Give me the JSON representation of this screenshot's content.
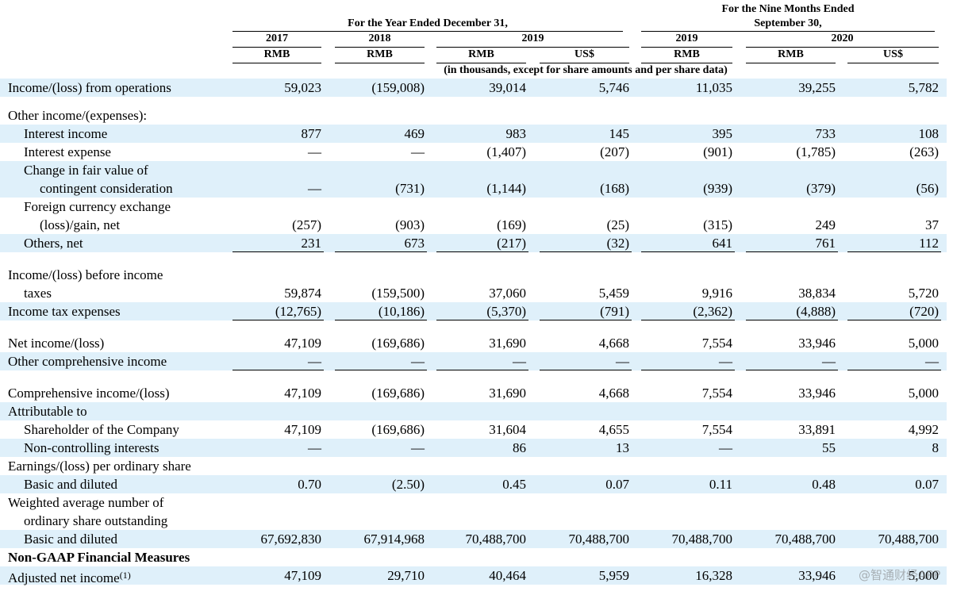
{
  "header": {
    "nine_months_group": [
      "For the Nine Months Ended",
      "September 30,"
    ],
    "year_group": "For the Year Ended December 31,",
    "years": [
      "2017",
      "2018",
      "2019",
      "2019",
      "2020"
    ],
    "currencies": [
      "RMB",
      "RMB",
      "RMB",
      "US$",
      "RMB",
      "RMB",
      "US$"
    ],
    "note": "(in thousands, except for share amounts and per share data)"
  },
  "sections": [
    {
      "rows": [
        {
          "label": [
            "Income/(loss) from operations"
          ],
          "level": 0,
          "shaded": true,
          "values": [
            "59,023",
            "(159,008)",
            "39,014",
            "5,746",
            "11,035",
            "39,255",
            "5,782"
          ]
        }
      ]
    },
    {
      "rows": [
        {
          "label": [
            "Other income/(expenses):"
          ],
          "level": 0,
          "shaded": false
        },
        {
          "label": [
            "Interest income"
          ],
          "level": 1,
          "shaded": true,
          "values": [
            "877",
            "469",
            "983",
            "145",
            "395",
            "733",
            "108"
          ]
        },
        {
          "label": [
            "Interest expense"
          ],
          "level": 1,
          "shaded": false,
          "values": [
            "—",
            "—",
            "(1,407)",
            "(207)",
            "(901)",
            "(1,785)",
            "(263)"
          ]
        },
        {
          "label": [
            "Change in fair value of",
            "contingent consideration"
          ],
          "level": 1,
          "shaded": true,
          "values": [
            "—",
            "(731)",
            "(1,144)",
            "(168)",
            "(939)",
            "(379)",
            "(56)"
          ]
        },
        {
          "label": [
            "Foreign currency exchange",
            "(loss)/gain, net"
          ],
          "level": 1,
          "shaded": false,
          "values": [
            "(257)",
            "(903)",
            "(169)",
            "(25)",
            "(315)",
            "249",
            "37"
          ]
        },
        {
          "label": [
            "Others, net"
          ],
          "level": 1,
          "shaded": true,
          "underline": true,
          "values": [
            "231",
            "673",
            "(217)",
            "(32)",
            "641",
            "761",
            "112"
          ]
        }
      ]
    },
    {
      "rows": [
        {
          "label": [
            "Income/(loss) before income",
            "taxes"
          ],
          "level": 0,
          "shaded": false,
          "values": [
            "59,874",
            "(159,500)",
            "37,060",
            "5,459",
            "9,916",
            "38,834",
            "5,720"
          ]
        },
        {
          "label": [
            "Income tax expenses"
          ],
          "level": 0,
          "shaded": true,
          "underline": true,
          "values": [
            "(12,765)",
            "(10,186)",
            "(5,370)",
            "(791)",
            "(2,362)",
            "(4,888)",
            "(720)"
          ]
        }
      ]
    },
    {
      "rows": [
        {
          "label": [
            "Net income/(loss)"
          ],
          "level": 0,
          "shaded": false,
          "values": [
            "47,109",
            "(169,686)",
            "31,690",
            "4,668",
            "7,554",
            "33,946",
            "5,000"
          ]
        },
        {
          "label": [
            "Other comprehensive income"
          ],
          "level": 0,
          "shaded": true,
          "underline": true,
          "values": [
            "—",
            "—",
            "—",
            "—",
            "—",
            "—",
            "—"
          ]
        }
      ]
    },
    {
      "rows": [
        {
          "label": [
            "Comprehensive income/(loss)"
          ],
          "level": 0,
          "shaded": false,
          "values": [
            "47,109",
            "(169,686)",
            "31,690",
            "4,668",
            "7,554",
            "33,946",
            "5,000"
          ]
        },
        {
          "label": [
            "Attributable to"
          ],
          "level": 0,
          "shaded": true
        },
        {
          "label": [
            "Shareholder of the Company"
          ],
          "level": 1,
          "shaded": false,
          "values": [
            "47,109",
            "(169,686)",
            "31,604",
            "4,655",
            "7,554",
            "33,891",
            "4,992"
          ]
        },
        {
          "label": [
            "Non-controlling interests"
          ],
          "level": 1,
          "shaded": true,
          "values": [
            "—",
            "—",
            "86",
            "13",
            "—",
            "55",
            "8"
          ]
        },
        {
          "label": [
            "Earnings/(loss) per ordinary share"
          ],
          "level": 0,
          "shaded": false
        },
        {
          "label": [
            "Basic and diluted"
          ],
          "level": 1,
          "shaded": true,
          "values": [
            "0.70",
            "(2.50)",
            "0.45",
            "0.07",
            "0.11",
            "0.48",
            "0.07"
          ]
        },
        {
          "label": [
            "Weighted average number of",
            "ordinary share outstanding"
          ],
          "level": 0,
          "shaded": false
        },
        {
          "label": [
            "Basic and diluted"
          ],
          "level": 1,
          "shaded": true,
          "values": [
            "67,692,830",
            "67,914,968",
            "70,488,700",
            "70,488,700",
            "70,488,700",
            "70,488,700",
            "70,488,700"
          ]
        },
        {
          "label": [
            "Non-GAAP Financial Measures"
          ],
          "level": 0,
          "shaded": false,
          "bold": true
        },
        {
          "label": [
            "Adjusted net income"
          ],
          "footnote": "(1)",
          "level": 0,
          "shaded": true,
          "values": [
            "47,109",
            "29,710",
            "40,464",
            "5,959",
            "16,328",
            "33,946",
            "5,000"
          ]
        }
      ]
    }
  ],
  "watermark": "@智通财经APP"
}
